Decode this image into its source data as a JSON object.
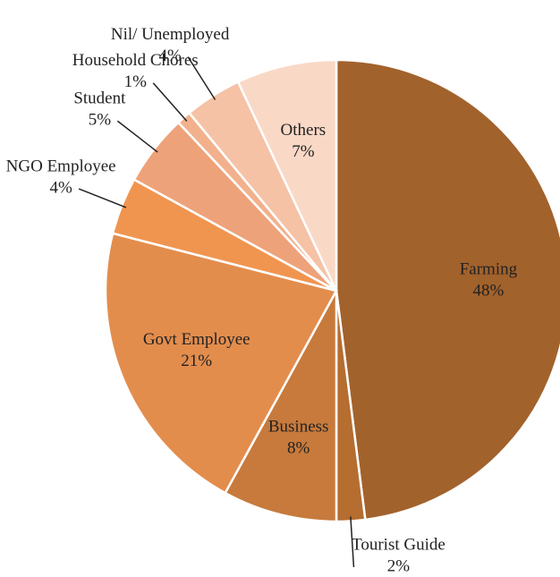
{
  "chart_data": {
    "type": "pie",
    "categories": [
      "Farming",
      "Tourist Guide",
      "Business",
      "Govt Employee",
      "NGO Employee",
      "Student",
      "Household Chores",
      "Nil/ Unemployed",
      "Others"
    ],
    "values": [
      48,
      2,
      8,
      21,
      4,
      5,
      1,
      4,
      7
    ],
    "value_labels": [
      "48%",
      "2%",
      "8%",
      "21%",
      "4%",
      "5%",
      "1%",
      "4%",
      "7%"
    ],
    "colors": [
      "#a2622c",
      "#b56d30",
      "#c77a3c",
      "#e38d4d",
      "#f09550",
      "#eea27a",
      "#f2b18c",
      "#f5c2a6",
      "#f9d8c6"
    ]
  }
}
